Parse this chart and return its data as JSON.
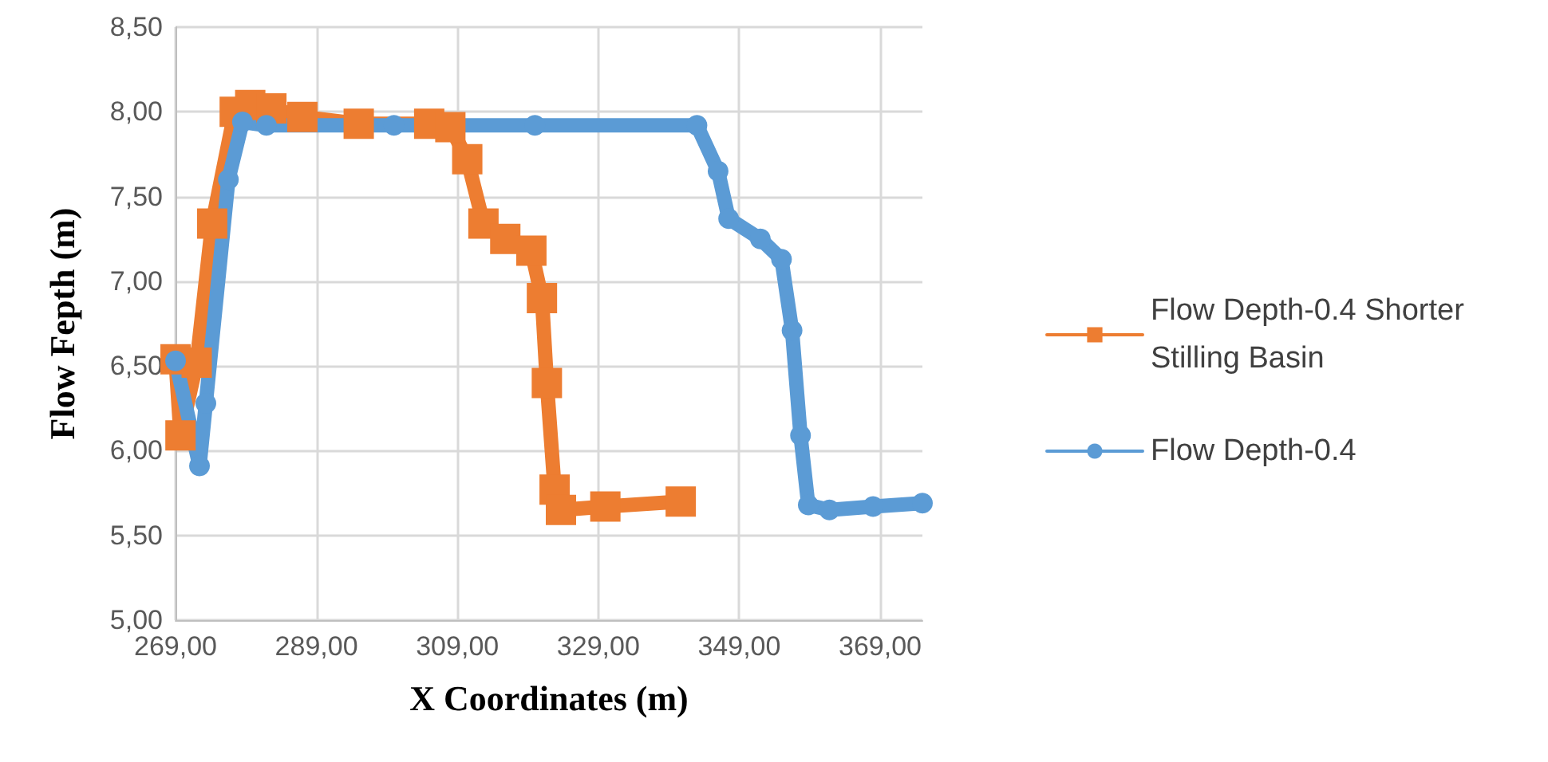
{
  "chart_data": {
    "type": "line",
    "xlabel": "X Coordinates (m)",
    "ylabel": "Flow Fepth (m)",
    "xlim": [
      269,
      375
    ],
    "xticks": [
      {
        "value": 269,
        "label": "269,00"
      },
      {
        "value": 289,
        "label": "289,00"
      },
      {
        "value": 309,
        "label": "309,00"
      },
      {
        "value": 329,
        "label": "329,00"
      },
      {
        "value": 349,
        "label": "349,00"
      },
      {
        "value": 369,
        "label": "369,00"
      }
    ],
    "ylim": [
      5,
      8.5
    ],
    "yticks": [
      {
        "value": 5,
        "label": "5,00"
      },
      {
        "value": 5.5,
        "label": "5,50"
      },
      {
        "value": 6,
        "label": "6,00"
      },
      {
        "value": 6.5,
        "label": "6,50"
      },
      {
        "value": 7,
        "label": "7,00"
      },
      {
        "value": 7.5,
        "label": "7,50"
      },
      {
        "value": 8,
        "label": "8,00"
      },
      {
        "value": 8.5,
        "label": "8,50"
      }
    ],
    "grid": true,
    "legend": "right",
    "series": [
      {
        "name": "Flow Depth-0.4 Shorter Stilling Basin",
        "color": "#ed7d31",
        "marker": "square",
        "x": [
          269,
          269.7,
          272,
          274.2,
          277.4,
          279.6,
          282.6,
          287,
          295,
          305,
          308,
          310.4,
          312.7,
          315.8,
          319.5,
          321,
          321.7,
          322.8,
          323.7,
          330,
          340.7
        ],
        "values": [
          6.54,
          6.09,
          6.52,
          7.34,
          8.0,
          8.04,
          8.02,
          7.97,
          7.93,
          7.93,
          7.91,
          7.72,
          7.34,
          7.25,
          7.18,
          6.9,
          6.4,
          5.77,
          5.65,
          5.67,
          5.7
        ]
      },
      {
        "name": "Flow Depth-0.4",
        "color": "#5b9bd5",
        "marker": "circle",
        "x": [
          269,
          272.4,
          273.3,
          276.5,
          278.5,
          281.9,
          300,
          320,
          343,
          346,
          347.5,
          352,
          355,
          356.5,
          357.7,
          358.8,
          361.8,
          368,
          375
        ],
        "values": [
          6.53,
          5.91,
          6.28,
          7.6,
          7.94,
          7.92,
          7.92,
          7.92,
          7.92,
          7.65,
          7.37,
          7.25,
          7.13,
          6.71,
          6.09,
          5.68,
          5.65,
          5.67,
          5.69
        ]
      }
    ]
  }
}
